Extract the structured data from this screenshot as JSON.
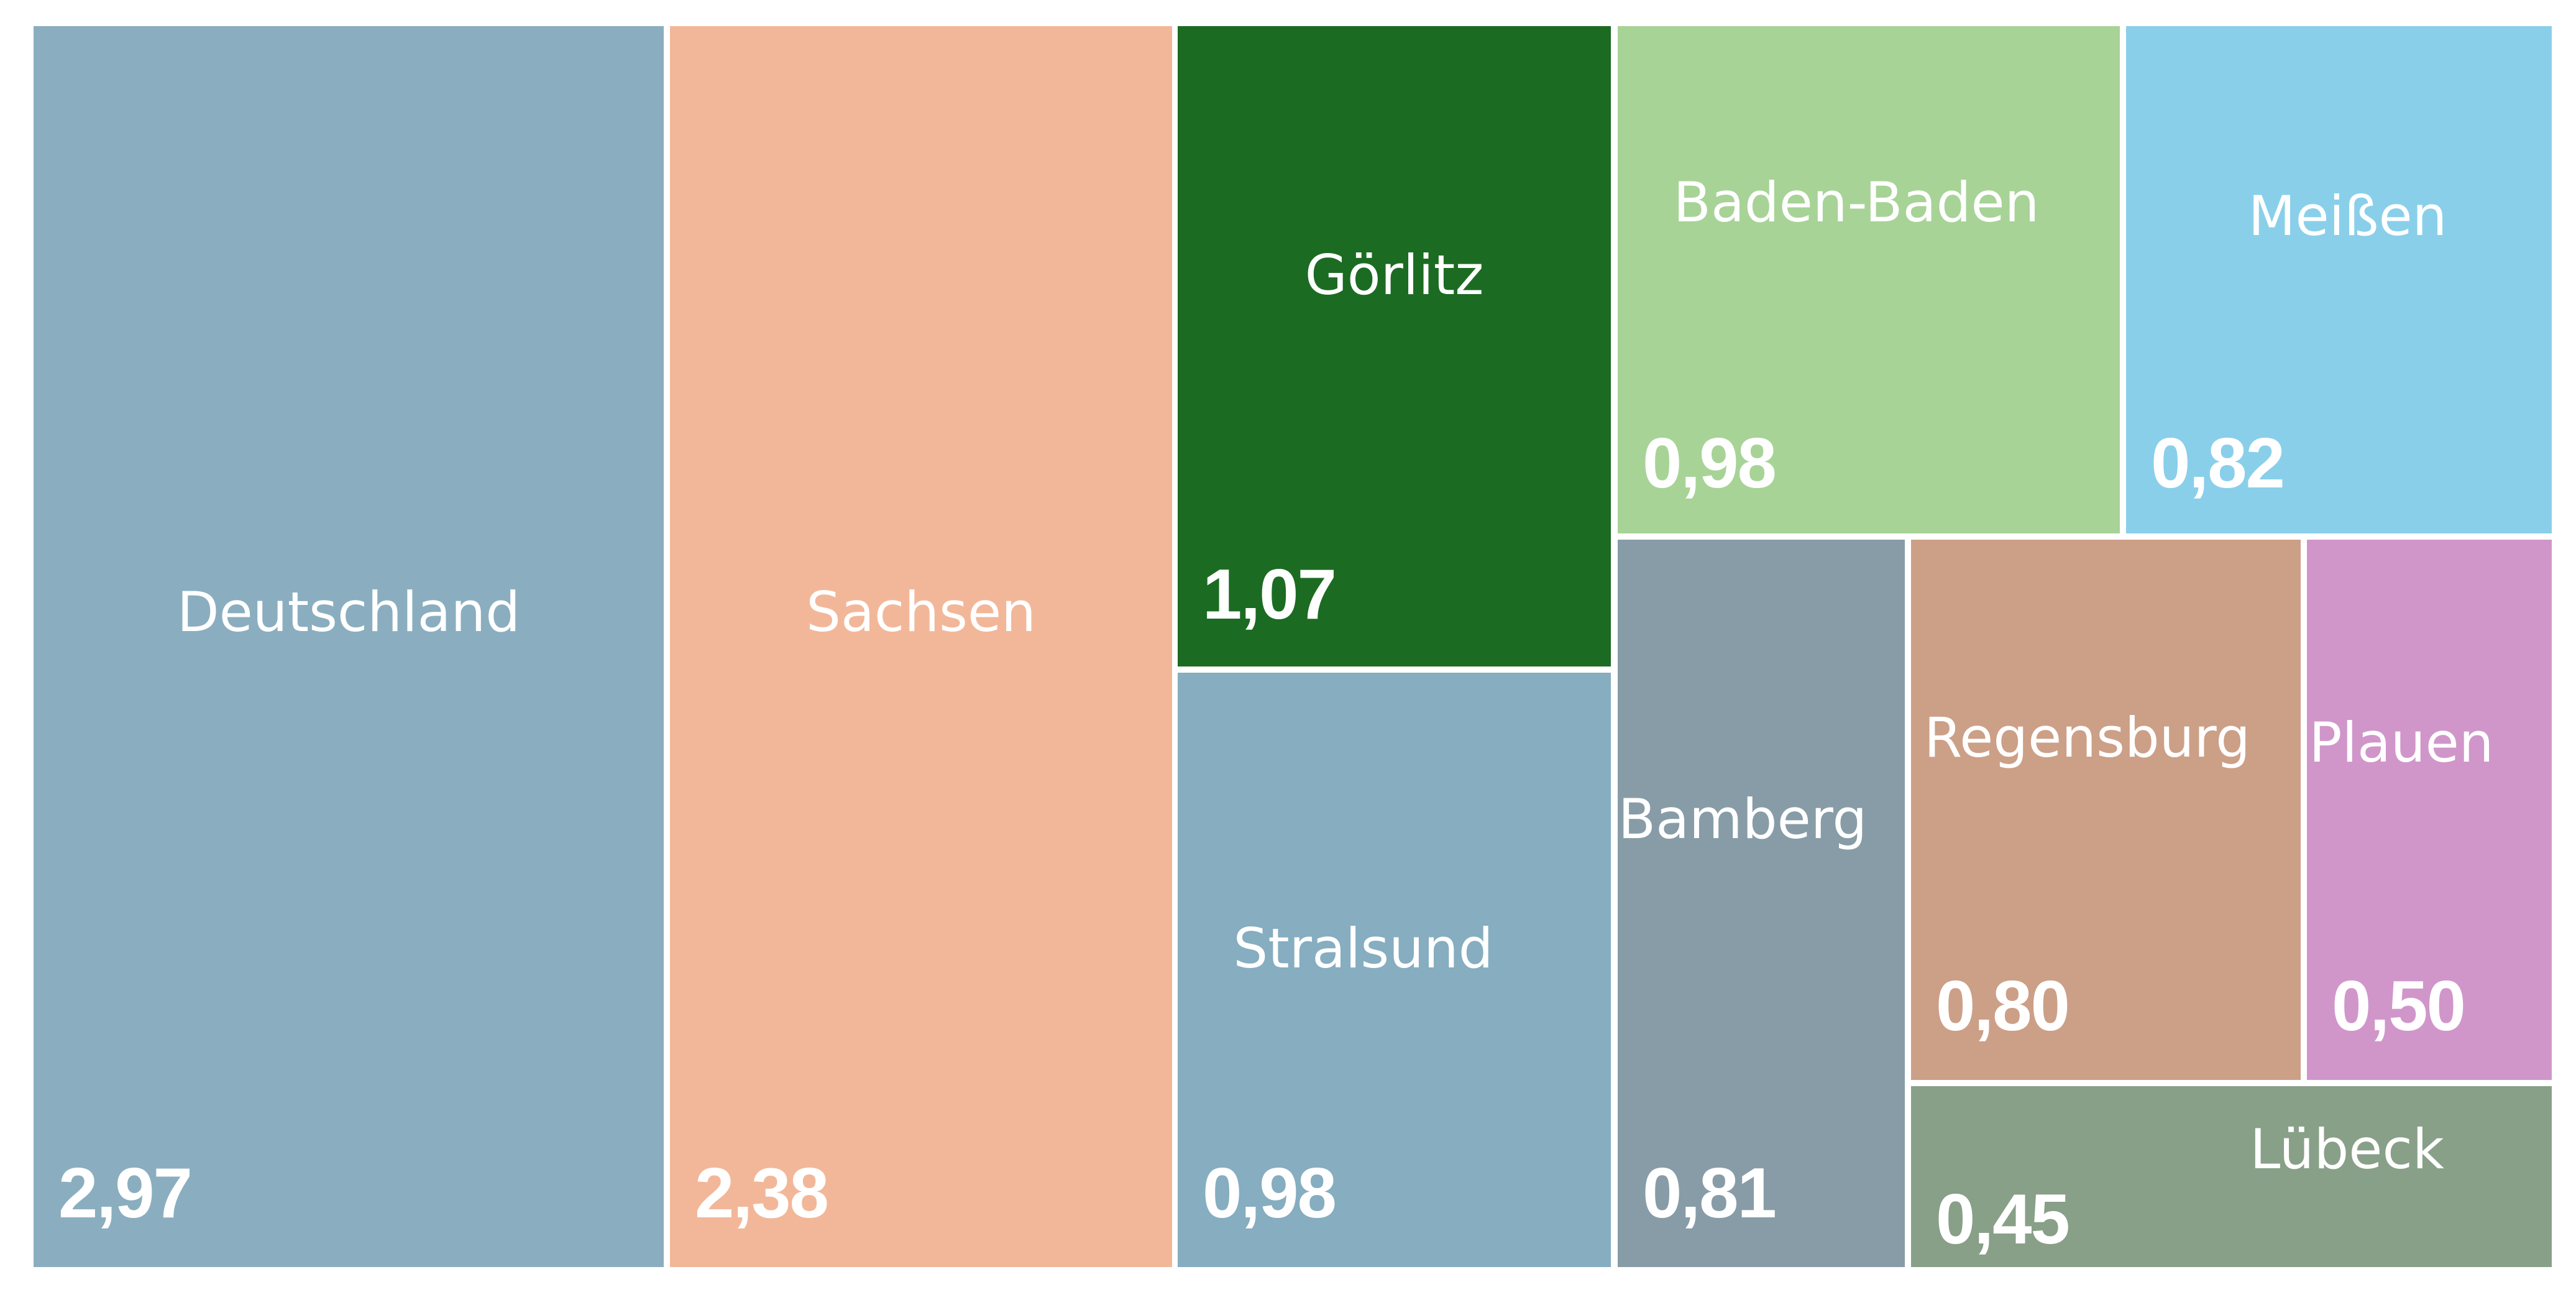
{
  "chart_data": {
    "type": "treemap",
    "title": "",
    "items": [
      {
        "label": "Deutschland",
        "value": 2.97,
        "display": "2,97",
        "color": "#8aaebf"
      },
      {
        "label": "Sachsen",
        "value": 2.38,
        "display": "2,38",
        "color": "#f2b799"
      },
      {
        "label": "Görlitz",
        "value": 1.07,
        "display": "1,07",
        "color": "#1c6b22"
      },
      {
        "label": "Stralsund",
        "value": 0.98,
        "display": "0,98",
        "color": "#86adc0"
      },
      {
        "label": "Baden-Baden",
        "value": 0.98,
        "display": "0,98",
        "color": "#a7d397"
      },
      {
        "label": "Meißen",
        "value": 0.82,
        "display": "0,82",
        "color": "#89cfea"
      },
      {
        "label": "Bamberg",
        "value": 0.81,
        "display": "0,81",
        "color": "#879ca7"
      },
      {
        "label": "Regensburg",
        "value": 0.8,
        "display": "0,80",
        "color": "#cc9f87"
      },
      {
        "label": "Plauen",
        "value": 0.5,
        "display": "0,50",
        "color": "#d096ca"
      },
      {
        "label": "Lübeck",
        "value": 0.45,
        "display": "0,45",
        "color": "#889f88"
      }
    ]
  }
}
